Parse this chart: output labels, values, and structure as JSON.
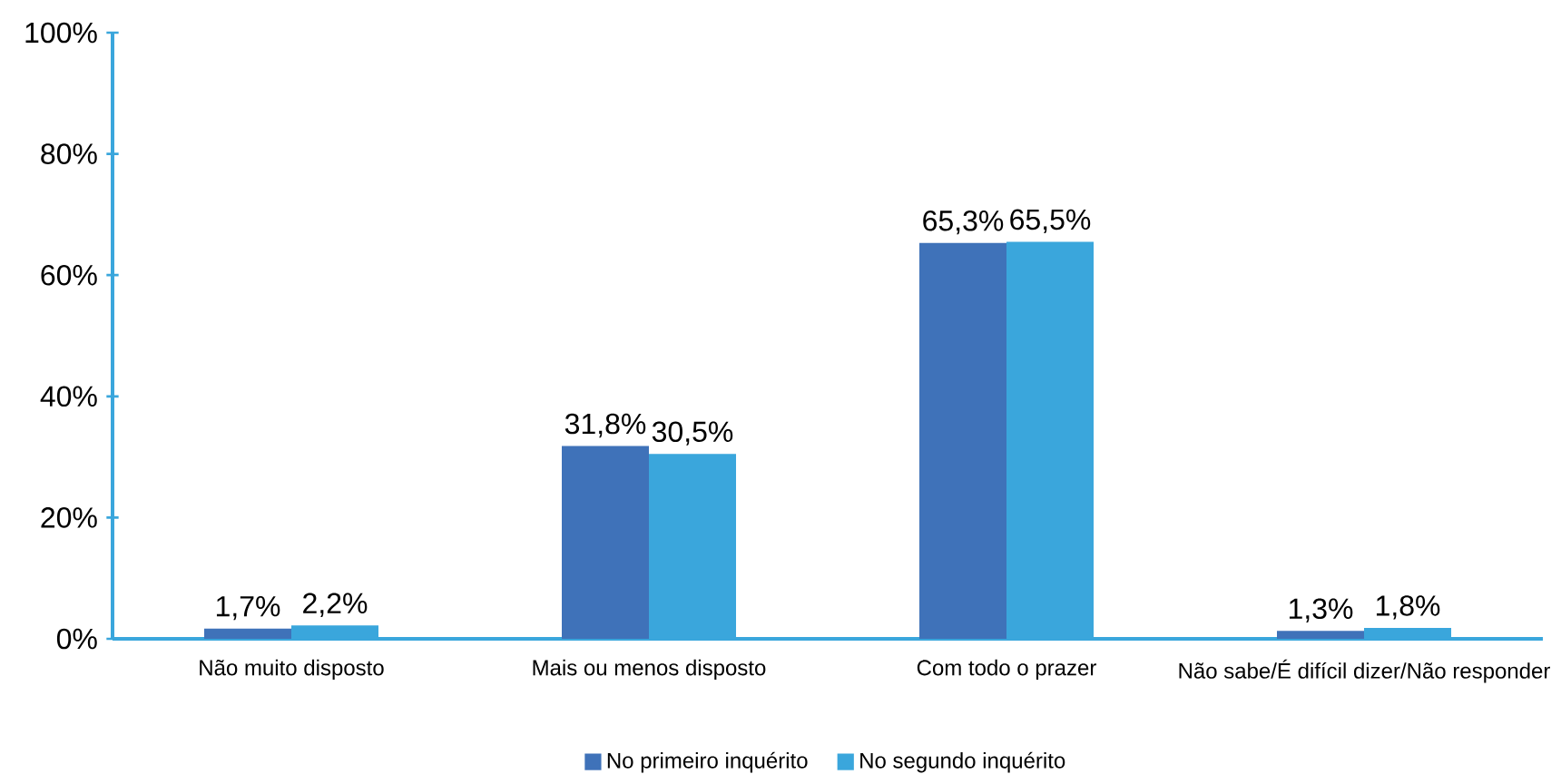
{
  "chart_data": {
    "type": "bar",
    "categories": [
      "Não muito disposto",
      "Mais ou menos disposto",
      "Com todo o prazer",
      "Não sabe/É difícil dizer/Não responder"
    ],
    "series": [
      {
        "name": "No primeiro inquérito",
        "color": "#3f72b9",
        "values": [
          1.7,
          31.8,
          65.3,
          1.3
        ],
        "value_labels": [
          "1,7%",
          "31,8%",
          "65,3%",
          "1,3%"
        ]
      },
      {
        "name": "No segundo inquérito",
        "color": "#3aa6dc",
        "values": [
          2.2,
          30.5,
          65.5,
          1.8
        ],
        "value_labels": [
          "2,2%",
          "30,5%",
          "65,5%",
          "1,8%"
        ]
      }
    ],
    "ylim": [
      0,
      100
    ],
    "yticks": [
      {
        "value": 0,
        "label": "0%"
      },
      {
        "value": 20,
        "label": "20%"
      },
      {
        "value": 40,
        "label": "40%"
      },
      {
        "value": 60,
        "label": "60%"
      },
      {
        "value": 80,
        "label": "80%"
      },
      {
        "value": 100,
        "label": "100%"
      }
    ],
    "grid": false,
    "legend": "bottom"
  }
}
